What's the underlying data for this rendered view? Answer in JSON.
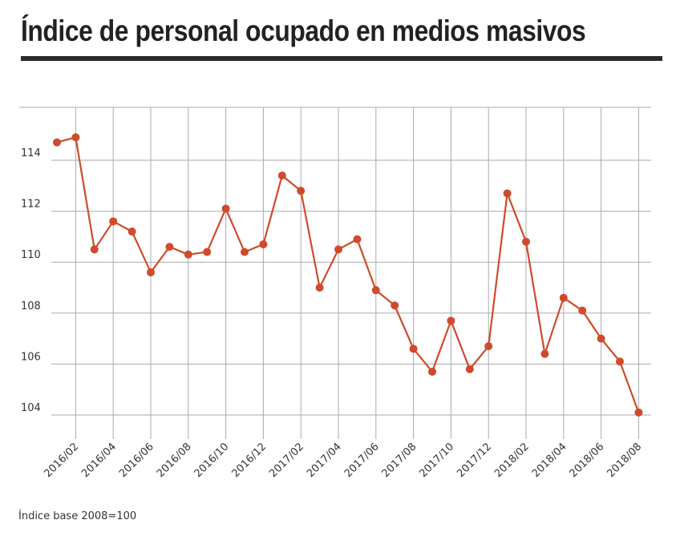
{
  "title": "Índice de personal ocupado en medios masivos",
  "footnote": "Índice base 2008=100",
  "colors": {
    "line": "#d04a2c",
    "grid": "#aaaaaa",
    "title_rule": "#2b2b2b"
  },
  "chart_data": {
    "type": "line",
    "title": "Índice de personal ocupado en medios masivos",
    "xlabel": "",
    "ylabel": "",
    "ylim": [
      103,
      116
    ],
    "yticks": [
      104,
      106,
      108,
      110,
      112,
      114
    ],
    "grid": true,
    "x": [
      "2016/01",
      "2016/02",
      "2016/03",
      "2016/04",
      "2016/05",
      "2016/06",
      "2016/07",
      "2016/08",
      "2016/09",
      "2016/10",
      "2016/11",
      "2016/12",
      "2017/01",
      "2017/02",
      "2017/03",
      "2017/04",
      "2017/05",
      "2017/06",
      "2017/07",
      "2017/08",
      "2017/09",
      "2017/10",
      "2017/11",
      "2017/12",
      "2018/01",
      "2018/02",
      "2018/03",
      "2018/04",
      "2018/05",
      "2018/06",
      "2018/07",
      "2018/08"
    ],
    "xtick_labels": [
      "2016/02",
      "2016/04",
      "2016/06",
      "2016/08",
      "2016/10",
      "2016/12",
      "2017/02",
      "2017/04",
      "2017/06",
      "2017/08",
      "2017/10",
      "2017/12",
      "2018/02",
      "2018/04",
      "2018/06",
      "2018/08"
    ],
    "series": [
      {
        "values": [
          114.7,
          114.9,
          110.5,
          111.6,
          111.2,
          109.6,
          110.6,
          110.3,
          110.4,
          112.1,
          110.4,
          110.7,
          113.4,
          112.8,
          109.0,
          110.5,
          110.9,
          108.9,
          108.3,
          106.6,
          105.7,
          107.7,
          105.8,
          106.7,
          112.7,
          110.8,
          106.4,
          108.6,
          108.1,
          107.0,
          106.1,
          104.1
        ]
      }
    ]
  }
}
